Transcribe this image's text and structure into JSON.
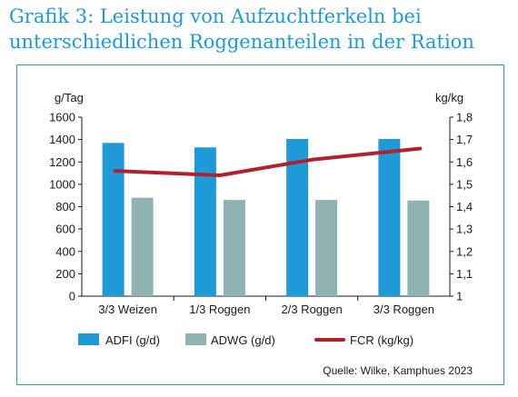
{
  "title_line1": "Grafik 3: Leistung von Aufzuchtferkeln bei",
  "title_line2": "unterschiedlichen Roggenanteilen in der Ration",
  "source": "Quelle: Wilke, Kamphues 2023",
  "colors": {
    "title": "#1e9ad6",
    "frame": "#1e9ad6",
    "adfi": "#1e9ad6",
    "adwg": "#8fb3b2",
    "fcr": "#b0202e"
  },
  "chart_data": {
    "type": "bar",
    "categories": [
      "3/3 Weizen",
      "1/3 Roggen",
      "2/3 Roggen",
      "3/3 Roggen"
    ],
    "series": [
      {
        "name": "ADFI (g/d)",
        "type": "bar",
        "axis": "left",
        "values": [
          1370,
          1330,
          1405,
          1405
        ]
      },
      {
        "name": "ADWG (g/d)",
        "type": "bar",
        "axis": "left",
        "values": [
          880,
          860,
          860,
          855
        ]
      },
      {
        "name": "FCR (kg/kg)",
        "type": "line",
        "axis": "right",
        "values": [
          1.56,
          1.54,
          1.61,
          1.66
        ]
      }
    ],
    "ylabel_left": "g/Tag",
    "ylabel_right": "kg/kg",
    "ylim_left": [
      0,
      1600
    ],
    "ylim_right": [
      1.0,
      1.8
    ],
    "yticks_left": [
      "0",
      "200",
      "400",
      "600",
      "800",
      "1000",
      "1200",
      "1400",
      "1600"
    ],
    "yticks_right": [
      "1",
      "1,1",
      "1,2",
      "1,3",
      "1,4",
      "1,5",
      "1,6",
      "1,7",
      "1,8"
    ],
    "grid": false,
    "legend_position": "bottom"
  }
}
